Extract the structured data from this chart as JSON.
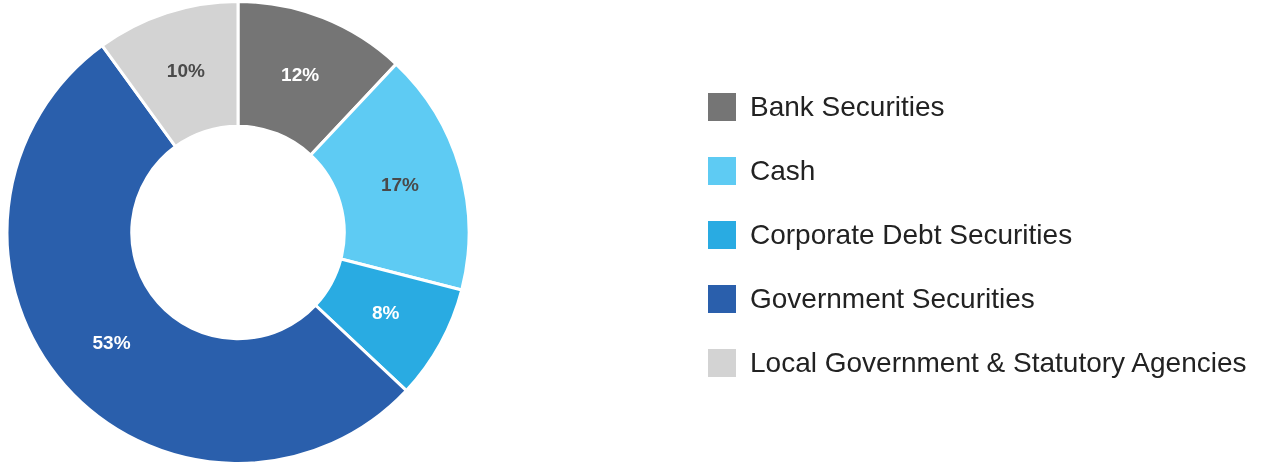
{
  "chart_data": {
    "type": "donut",
    "categories": [
      "Bank Securities",
      "Cash",
      "Corporate Debt Securities",
      "Government Securities",
      "Local Government & Statutory Agencies"
    ],
    "values": [
      12,
      17,
      8,
      53,
      10
    ],
    "colors": [
      "#757575",
      "#5ecbf3",
      "#29abe2",
      "#2a5fac",
      "#d3d3d3"
    ],
    "value_labels": [
      "12%",
      "17%",
      "8%",
      "53%",
      "10%"
    ],
    "legend": "right"
  }
}
